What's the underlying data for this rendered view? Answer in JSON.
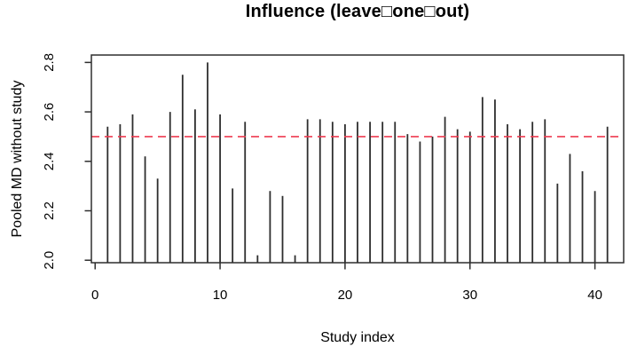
{
  "page": {
    "background": "#ffffff"
  },
  "chart_data": {
    "type": "bar",
    "mark": "vertical-lines-from-baseline (R plot type='h')",
    "title": "Influence (leave□one□out)",
    "xlabel": "Study index",
    "ylabel": "Pooled MD without study",
    "x": [
      1,
      2,
      3,
      4,
      5,
      6,
      7,
      8,
      9,
      10,
      11,
      12,
      13,
      14,
      15,
      16,
      17,
      18,
      19,
      20,
      21,
      22,
      23,
      24,
      25,
      26,
      27,
      28,
      29,
      30,
      31,
      32,
      33,
      34,
      35,
      36,
      37,
      38,
      39,
      40,
      41
    ],
    "values": [
      2.54,
      2.55,
      2.59,
      2.42,
      2.33,
      2.6,
      2.75,
      2.61,
      2.8,
      2.59,
      2.29,
      2.56,
      2.02,
      2.28,
      2.26,
      2.02,
      2.57,
      2.57,
      2.56,
      2.55,
      2.56,
      2.56,
      2.56,
      2.56,
      2.51,
      2.48,
      2.5,
      2.58,
      2.53,
      2.52,
      2.66,
      2.65,
      2.55,
      2.53,
      2.56,
      2.57,
      2.31,
      2.43,
      2.36,
      2.28,
      2.54
    ],
    "reference_line": {
      "value": 2.5,
      "style": "dashed",
      "color": "#ee3b50"
    },
    "xlim": [
      -0.3,
      42.3
    ],
    "ylim": [
      1.99,
      2.83
    ],
    "xticks": {
      "positions": [
        0,
        10,
        20,
        30,
        40
      ],
      "labels": [
        "0",
        "10",
        "20",
        "30",
        "40"
      ]
    },
    "yticks": {
      "positions": [
        2.0,
        2.2,
        2.4,
        2.6,
        2.8
      ],
      "labels": [
        "2.0",
        "2.2",
        "2.4",
        "2.6",
        "2.8"
      ]
    },
    "grid": false,
    "legend": null,
    "colors": {
      "line": "#2e2e2e",
      "axis": "#2e2e2e",
      "text": "#000000"
    }
  }
}
